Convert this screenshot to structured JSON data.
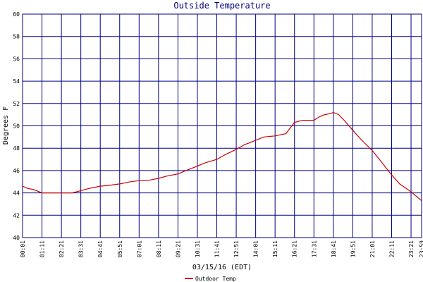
{
  "chart_data": {
    "type": "line",
    "title": "Outside Temperature",
    "xlabel": "03/15/16 (EDT)",
    "ylabel": "Degrees F",
    "ylim": [
      40,
      60
    ],
    "yticks": [
      40,
      42,
      44,
      46,
      48,
      50,
      52,
      54,
      56,
      58,
      60
    ],
    "xlim": [
      "00:01",
      "23:59"
    ],
    "xticks": [
      "00:01",
      "01:11",
      "02:21",
      "03:31",
      "04:41",
      "05:51",
      "07:01",
      "08:11",
      "09:21",
      "10:31",
      "11:41",
      "12:51",
      "14:01",
      "15:11",
      "16:21",
      "17:31",
      "18:41",
      "19:51",
      "21:01",
      "22:11",
      "23:21",
      "23:59"
    ],
    "grid": true,
    "legend_position": "bottom",
    "colors": {
      "plot_background": "#ffffff",
      "grid": "#000080",
      "frame": "#000080",
      "series": "#cc0000",
      "title": "#000080"
    },
    "series": [
      {
        "name": "Outdoor Temp",
        "x": [
          "00:01",
          "00:20",
          "00:40",
          "01:11",
          "01:40",
          "02:21",
          "03:00",
          "03:31",
          "04:00",
          "04:41",
          "05:20",
          "05:51",
          "06:30",
          "07:01",
          "07:30",
          "08:11",
          "08:40",
          "09:21",
          "09:50",
          "10:31",
          "11:00",
          "11:41",
          "12:10",
          "12:51",
          "13:20",
          "14:01",
          "14:30",
          "15:11",
          "15:50",
          "16:21",
          "16:50",
          "17:31",
          "17:50",
          "18:10",
          "18:30",
          "18:41",
          "19:00",
          "19:20",
          "19:51",
          "20:20",
          "21:01",
          "21:30",
          "22:11",
          "22:40",
          "23:21",
          "23:59"
        ],
        "y": [
          44.6,
          44.4,
          44.3,
          44.0,
          44.0,
          44.0,
          44.0,
          44.2,
          44.4,
          44.6,
          44.7,
          44.8,
          45.0,
          45.1,
          45.1,
          45.3,
          45.5,
          45.7,
          46.0,
          46.4,
          46.7,
          47.0,
          47.4,
          47.9,
          48.3,
          48.7,
          49.0,
          49.1,
          49.3,
          50.3,
          50.5,
          50.5,
          50.8,
          51.0,
          51.1,
          51.2,
          51.0,
          50.5,
          49.6,
          48.8,
          47.8,
          46.9,
          45.6,
          44.8,
          44.1,
          43.3
        ]
      }
    ]
  }
}
